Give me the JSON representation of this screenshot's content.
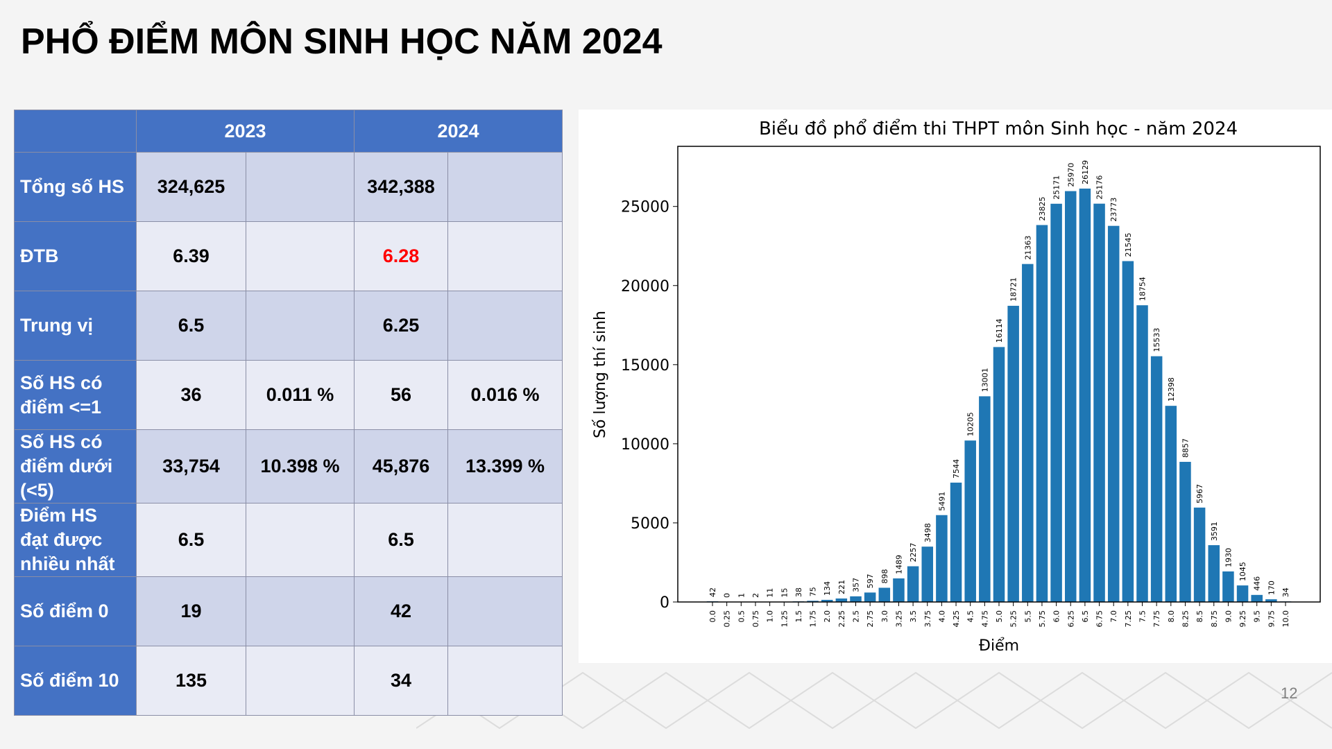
{
  "slide": {
    "title": "PHỔ ĐIỂM MÔN SINH HỌC NĂM 2024",
    "page_number": "12"
  },
  "table": {
    "headers": [
      "",
      "2023",
      "2024"
    ],
    "rows": [
      {
        "label": "Tổng số HS",
        "v2023": "324,625",
        "p2023": "",
        "v2024": "342,388",
        "p2024": ""
      },
      {
        "label": "ĐTB",
        "v2023": "6.39",
        "p2023": "",
        "v2024": "6.28",
        "p2024": ""
      },
      {
        "label": "Trung vị",
        "v2023": "6.5",
        "p2023": "",
        "v2024": "6.25",
        "p2024": ""
      },
      {
        "label": "Số HS có điểm <=1",
        "v2023": "36",
        "p2023": "0.011 %",
        "v2024": "56",
        "p2024": "0.016 %"
      },
      {
        "label": "Số HS có điểm dưới (<5)",
        "v2023": "33,754",
        "p2023": "10.398 %",
        "v2024": "45,876",
        "p2024": "13.399 %"
      },
      {
        "label": "Điểm HS đạt được nhiều nhất",
        "v2023": "6.5",
        "p2023": "",
        "v2024": "6.5",
        "p2024": ""
      },
      {
        "label": "Số điểm 0",
        "v2023": "19",
        "p2023": "",
        "v2024": "42",
        "p2024": ""
      },
      {
        "label": "Số điểm 10",
        "v2023": "135",
        "p2023": "",
        "v2024": "34",
        "p2024": ""
      }
    ],
    "highlight_color": "#ff0000"
  },
  "chart_data": {
    "type": "bar",
    "title": "Biểu đồ phổ điểm thi THPT môn Sinh học - năm 2024",
    "xlabel": "Điểm",
    "ylabel": "Số lượng thí sinh",
    "categories": [
      "0.0",
      "0.25",
      "0.5",
      "0.75",
      "1.0",
      "1.25",
      "1.5",
      "1.75",
      "2.0",
      "2.25",
      "2.5",
      "2.75",
      "3.0",
      "3.25",
      "3.5",
      "3.75",
      "4.0",
      "4.25",
      "4.5",
      "4.75",
      "5.0",
      "5.25",
      "5.5",
      "5.75",
      "6.0",
      "6.25",
      "6.5",
      "6.75",
      "7.0",
      "7.25",
      "7.5",
      "7.75",
      "8.0",
      "8.25",
      "8.5",
      "8.75",
      "9.0",
      "9.25",
      "9.5",
      "9.75",
      "10.0"
    ],
    "values": [
      42,
      0,
      1,
      2,
      11,
      15,
      38,
      75,
      134,
      221,
      357,
      597,
      898,
      1489,
      2257,
      3498,
      5491,
      7544,
      10205,
      13001,
      16114,
      18721,
      21363,
      23825,
      25171,
      25970,
      26129,
      25176,
      23773,
      21545,
      18754,
      15533,
      12398,
      8857,
      5967,
      3591,
      1930,
      1045,
      446,
      170,
      34
    ],
    "yticks": [
      0,
      5000,
      10000,
      15000,
      20000,
      25000
    ],
    "ylim": [
      0,
      28800
    ],
    "bar_color": "#1f77b4",
    "grid": false
  }
}
